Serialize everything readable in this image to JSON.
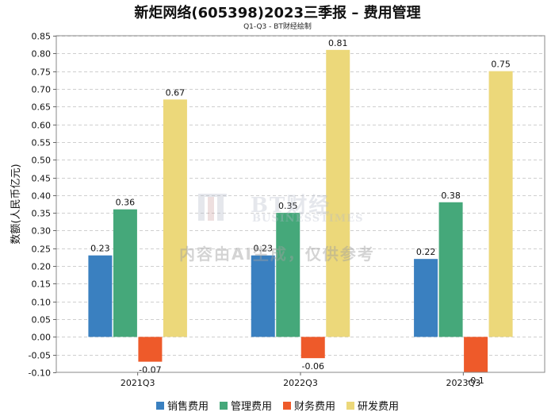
{
  "chart_data": {
    "type": "bar",
    "title": "新炬网络(605398)2023三季报 – 费用管理",
    "subtitle": "Q1-Q3 - BT财经绘制",
    "xlabel": "",
    "ylabel": "数额(人民币亿元)",
    "ylim": [
      -0.1,
      0.85
    ],
    "ytick_step": 0.05,
    "ytick_labels": [
      "-0.10",
      "-0.05",
      "0.00",
      "0.05",
      "0.10",
      "0.15",
      "0.20",
      "0.25",
      "0.30",
      "0.35",
      "0.40",
      "0.45",
      "0.50",
      "0.55",
      "0.60",
      "0.65",
      "0.70",
      "0.75",
      "0.80",
      "0.85"
    ],
    "categories": [
      "2021Q3",
      "2022Q3",
      "2023Q3"
    ],
    "series": [
      {
        "name": "销售费用",
        "color": "#3a80c0",
        "values": [
          0.23,
          0.23,
          0.22
        ],
        "labels": [
          "0.23",
          "0.23",
          "0.22"
        ]
      },
      {
        "name": "管理费用",
        "color": "#45a87a",
        "values": [
          0.36,
          0.35,
          0.38
        ],
        "labels": [
          "0.36",
          "0.35",
          "0.38"
        ]
      },
      {
        "name": "财务费用",
        "color": "#ee5a2a",
        "values": [
          -0.07,
          -0.06,
          -0.1
        ],
        "labels": [
          "-0.07",
          "-0.06",
          "-0.1"
        ]
      },
      {
        "name": "研发费用",
        "color": "#ecd87a",
        "values": [
          0.67,
          0.81,
          0.75
        ],
        "labels": [
          "0.67",
          "0.81",
          "0.75"
        ]
      }
    ],
    "grid": true,
    "legend_position": "bottom"
  },
  "watermark": {
    "logo_text": "BT财经",
    "logo_sub": "BUSINESSTIMES",
    "ai_note": "内容由AI生成，仅供参考"
  }
}
